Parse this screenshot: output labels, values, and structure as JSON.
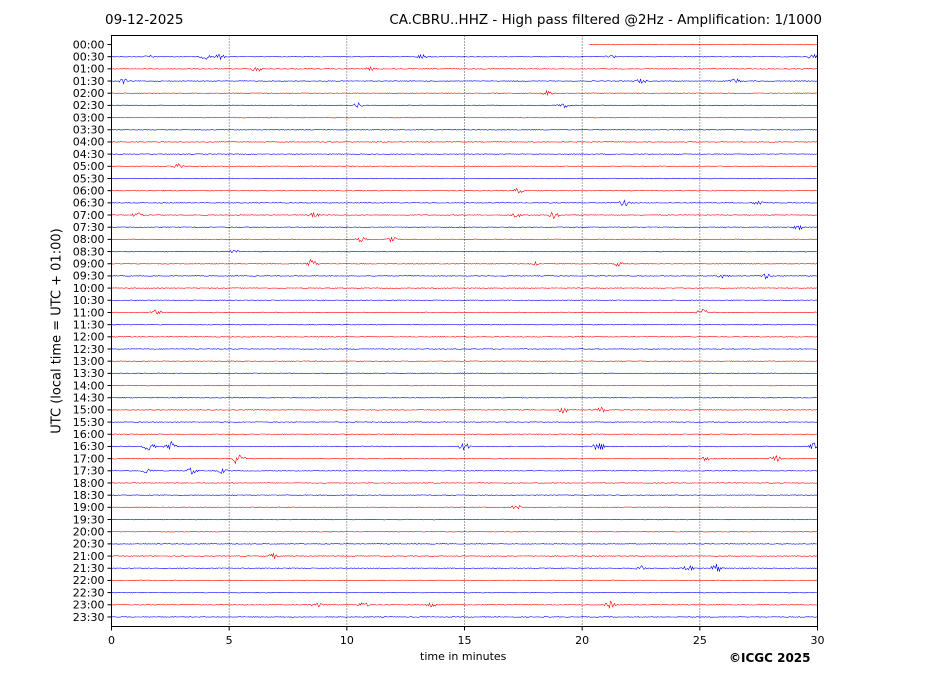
{
  "header": {
    "date": "09-12-2025",
    "title": "CA.CBRU..HHZ - High pass filtered @2Hz - Amplification: 1/1000"
  },
  "footer": {
    "copyright": "©ICGC 2025"
  },
  "chart_data": {
    "type": "line",
    "xlabel": "time in minutes",
    "ylabel": "UTC (local time = UTC + 01:00)",
    "xlim": [
      0,
      30
    ],
    "x_ticks": [
      0,
      5,
      10,
      15,
      20,
      25,
      30
    ],
    "grid": "vertical dotted lines at 5-minute intervals",
    "colors": {
      "red": "#ff0000",
      "blue": "#0000ff"
    },
    "rows": [
      "00:00",
      "00:30",
      "01:00",
      "01:30",
      "02:00",
      "02:30",
      "03:00",
      "03:30",
      "04:00",
      "04:30",
      "05:00",
      "05:30",
      "06:00",
      "06:30",
      "07:00",
      "07:30",
      "08:00",
      "08:30",
      "09:00",
      "09:30",
      "10:00",
      "10:30",
      "11:00",
      "11:30",
      "12:00",
      "12:30",
      "13:00",
      "13:30",
      "14:00",
      "14:30",
      "15:00",
      "15:30",
      "16:00",
      "16:30",
      "17:00",
      "17:30",
      "18:00",
      "18:30",
      "19:00",
      "19:30",
      "20:00",
      "20:30",
      "21:00",
      "21:30",
      "22:00",
      "22:30",
      "23:00",
      "23:30"
    ],
    "row_colors": [
      "red",
      "blue",
      "red",
      "blue",
      "red",
      "blue",
      "red",
      "blue",
      "red",
      "blue",
      "red",
      "blue",
      "red",
      "blue",
      "red",
      "blue",
      "red",
      "blue",
      "red",
      "blue",
      "red",
      "blue",
      "red",
      "blue",
      "red",
      "blue",
      "red",
      "blue",
      "red",
      "blue",
      "red",
      "blue",
      "red",
      "blue",
      "red",
      "blue",
      "red",
      "blue",
      "red",
      "blue",
      "red",
      "blue",
      "red",
      "blue",
      "red",
      "blue",
      "red",
      "blue"
    ],
    "row_start_minute": {
      "00:00": 20.3
    },
    "events": [
      {
        "row": "00:30",
        "minute": 4.0,
        "amp": 3
      },
      {
        "row": "00:30",
        "minute": 4.6,
        "amp": 3
      },
      {
        "row": "00:30",
        "minute": 1.6,
        "amp": 2
      },
      {
        "row": "00:30",
        "minute": 13.2,
        "amp": 3
      },
      {
        "row": "00:30",
        "minute": 21.2,
        "amp": 3
      },
      {
        "row": "00:30",
        "minute": 29.8,
        "amp": 3
      },
      {
        "row": "01:00",
        "minute": 6.2,
        "amp": 4
      },
      {
        "row": "01:00",
        "minute": 11.0,
        "amp": 2
      },
      {
        "row": "01:30",
        "minute": 0.5,
        "amp": 3
      },
      {
        "row": "01:30",
        "minute": 22.5,
        "amp": 3
      },
      {
        "row": "01:30",
        "minute": 26.5,
        "amp": 3
      },
      {
        "row": "02:00",
        "minute": 18.5,
        "amp": 3
      },
      {
        "row": "02:30",
        "minute": 10.5,
        "amp": 3
      },
      {
        "row": "02:30",
        "minute": 19.2,
        "amp": 3
      },
      {
        "row": "05:00",
        "minute": 2.8,
        "amp": 3
      },
      {
        "row": "06:00",
        "minute": 17.3,
        "amp": 3
      },
      {
        "row": "06:30",
        "minute": 21.8,
        "amp": 4
      },
      {
        "row": "06:30",
        "minute": 27.5,
        "amp": 3
      },
      {
        "row": "07:00",
        "minute": 1.1,
        "amp": 3
      },
      {
        "row": "07:00",
        "minute": 8.6,
        "amp": 3
      },
      {
        "row": "07:00",
        "minute": 17.2,
        "amp": 3
      },
      {
        "row": "07:00",
        "minute": 18.8,
        "amp": 4
      },
      {
        "row": "07:30",
        "minute": 29.2,
        "amp": 3
      },
      {
        "row": "08:00",
        "minute": 10.6,
        "amp": 3
      },
      {
        "row": "08:00",
        "minute": 11.9,
        "amp": 4
      },
      {
        "row": "08:30",
        "minute": 5.2,
        "amp": 3
      },
      {
        "row": "09:00",
        "minute": 8.5,
        "amp": 5
      },
      {
        "row": "09:00",
        "minute": 18.0,
        "amp": 3
      },
      {
        "row": "09:00",
        "minute": 21.5,
        "amp": 3
      },
      {
        "row": "09:30",
        "minute": 26.0,
        "amp": 3
      },
      {
        "row": "09:30",
        "minute": 27.8,
        "amp": 3
      },
      {
        "row": "11:00",
        "minute": 1.9,
        "amp": 3
      },
      {
        "row": "11:00",
        "minute": 25.1,
        "amp": 4
      },
      {
        "row": "15:00",
        "minute": 19.2,
        "amp": 4
      },
      {
        "row": "15:00",
        "minute": 20.8,
        "amp": 3
      },
      {
        "row": "16:30",
        "minute": 1.6,
        "amp": 6
      },
      {
        "row": "16:30",
        "minute": 2.5,
        "amp": 6
      },
      {
        "row": "16:30",
        "minute": 15.0,
        "amp": 5
      },
      {
        "row": "16:30",
        "minute": 20.7,
        "amp": 6
      },
      {
        "row": "16:30",
        "minute": 29.9,
        "amp": 5
      },
      {
        "row": "17:00",
        "minute": 5.4,
        "amp": 8
      },
      {
        "row": "17:00",
        "minute": 25.3,
        "amp": 3
      },
      {
        "row": "17:00",
        "minute": 28.2,
        "amp": 4
      },
      {
        "row": "17:30",
        "minute": 1.5,
        "amp": 3
      },
      {
        "row": "17:30",
        "minute": 3.4,
        "amp": 4
      },
      {
        "row": "17:30",
        "minute": 4.7,
        "amp": 3
      },
      {
        "row": "19:00",
        "minute": 17.2,
        "amp": 3
      },
      {
        "row": "21:00",
        "minute": 6.9,
        "amp": 3
      },
      {
        "row": "21:30",
        "minute": 24.5,
        "amp": 4
      },
      {
        "row": "21:30",
        "minute": 25.7,
        "amp": 5
      },
      {
        "row": "21:30",
        "minute": 22.5,
        "amp": 3
      },
      {
        "row": "23:00",
        "minute": 8.7,
        "amp": 3
      },
      {
        "row": "23:00",
        "minute": 10.7,
        "amp": 3
      },
      {
        "row": "23:00",
        "minute": 13.6,
        "amp": 3
      },
      {
        "row": "23:00",
        "minute": 21.2,
        "amp": 4
      }
    ]
  }
}
